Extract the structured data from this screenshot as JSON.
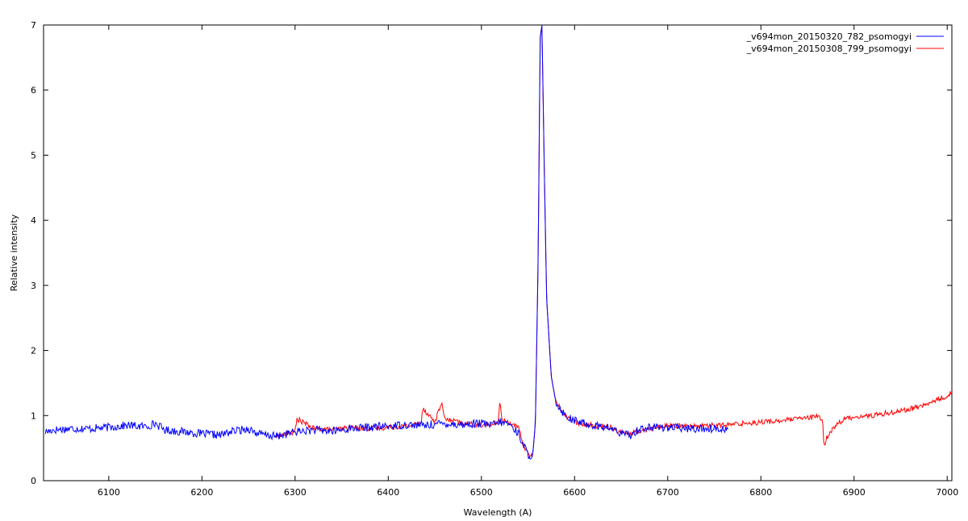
{
  "chart_data": {
    "type": "line",
    "title": "",
    "xlabel": "Wavelength (A)",
    "ylabel": "Relative intensity",
    "xlim": [
      6030,
      7005
    ],
    "ylim": [
      0,
      7
    ],
    "x_ticks": [
      6100,
      6200,
      6300,
      6400,
      6500,
      6600,
      6700,
      6800,
      6900,
      7000
    ],
    "y_ticks": [
      0,
      1,
      2,
      3,
      4,
      5,
      6,
      7
    ],
    "grid": false,
    "legend_position": "top-right",
    "series": [
      {
        "name": "_v694mon_20150320_782_psomogyi",
        "color": "#0000ff",
        "x": [
          6032,
          6040,
          6060,
          6080,
          6100,
          6120,
          6140,
          6150,
          6160,
          6180,
          6200,
          6220,
          6230,
          6250,
          6260,
          6280,
          6300,
          6320,
          6340,
          6360,
          6380,
          6400,
          6420,
          6440,
          6460,
          6480,
          6500,
          6510,
          6520,
          6530,
          6540,
          6545,
          6550,
          6555,
          6558,
          6561,
          6563,
          6565,
          6567,
          6570,
          6575,
          6580,
          6590,
          6600,
          6620,
          6640,
          6650,
          6660,
          6670,
          6680,
          6700,
          6720,
          6740,
          6760,
          6765
        ],
        "y": [
          0.75,
          0.78,
          0.8,
          0.8,
          0.82,
          0.85,
          0.83,
          0.88,
          0.78,
          0.75,
          0.72,
          0.7,
          0.75,
          0.8,
          0.72,
          0.68,
          0.75,
          0.78,
          0.76,
          0.8,
          0.82,
          0.84,
          0.86,
          0.85,
          0.88,
          0.86,
          0.88,
          0.85,
          0.9,
          0.87,
          0.72,
          0.55,
          0.4,
          0.38,
          0.9,
          3.5,
          6.8,
          7.0,
          5.2,
          2.8,
          1.6,
          1.2,
          1.0,
          0.92,
          0.85,
          0.8,
          0.72,
          0.7,
          0.8,
          0.82,
          0.82,
          0.8,
          0.8,
          0.8,
          0.8
        ]
      },
      {
        "name": "_v694mon_20150308_799_psomogyi",
        "color": "#ff0000",
        "x": [
          6280,
          6300,
          6302,
          6320,
          6340,
          6360,
          6380,
          6400,
          6420,
          6435,
          6437,
          6450,
          6458,
          6460,
          6480,
          6500,
          6518,
          6520,
          6522,
          6530,
          6540,
          6545,
          6550,
          6555,
          6558,
          6561,
          6563,
          6565,
          6567,
          6570,
          6575,
          6580,
          6590,
          6600,
          6620,
          6640,
          6650,
          6660,
          6680,
          6700,
          6720,
          6740,
          6760,
          6780,
          6800,
          6820,
          6840,
          6860,
          6866,
          6868,
          6870,
          6880,
          6890,
          6900,
          6920,
          6940,
          6960,
          6980,
          6990,
          7000,
          7005
        ],
        "y": [
          0.68,
          0.75,
          0.95,
          0.8,
          0.78,
          0.82,
          0.8,
          0.82,
          0.84,
          0.88,
          1.12,
          0.9,
          1.22,
          0.95,
          0.88,
          0.85,
          0.88,
          1.28,
          0.92,
          0.9,
          0.8,
          0.55,
          0.42,
          0.38,
          0.9,
          3.5,
          6.8,
          7.0,
          5.2,
          2.8,
          1.6,
          1.2,
          1.0,
          0.9,
          0.85,
          0.82,
          0.74,
          0.72,
          0.8,
          0.85,
          0.83,
          0.85,
          0.85,
          0.88,
          0.9,
          0.92,
          0.95,
          0.98,
          0.95,
          0.5,
          0.65,
          0.85,
          0.95,
          0.98,
          1.0,
          1.05,
          1.1,
          1.18,
          1.25,
          1.3,
          1.35
        ]
      }
    ]
  }
}
